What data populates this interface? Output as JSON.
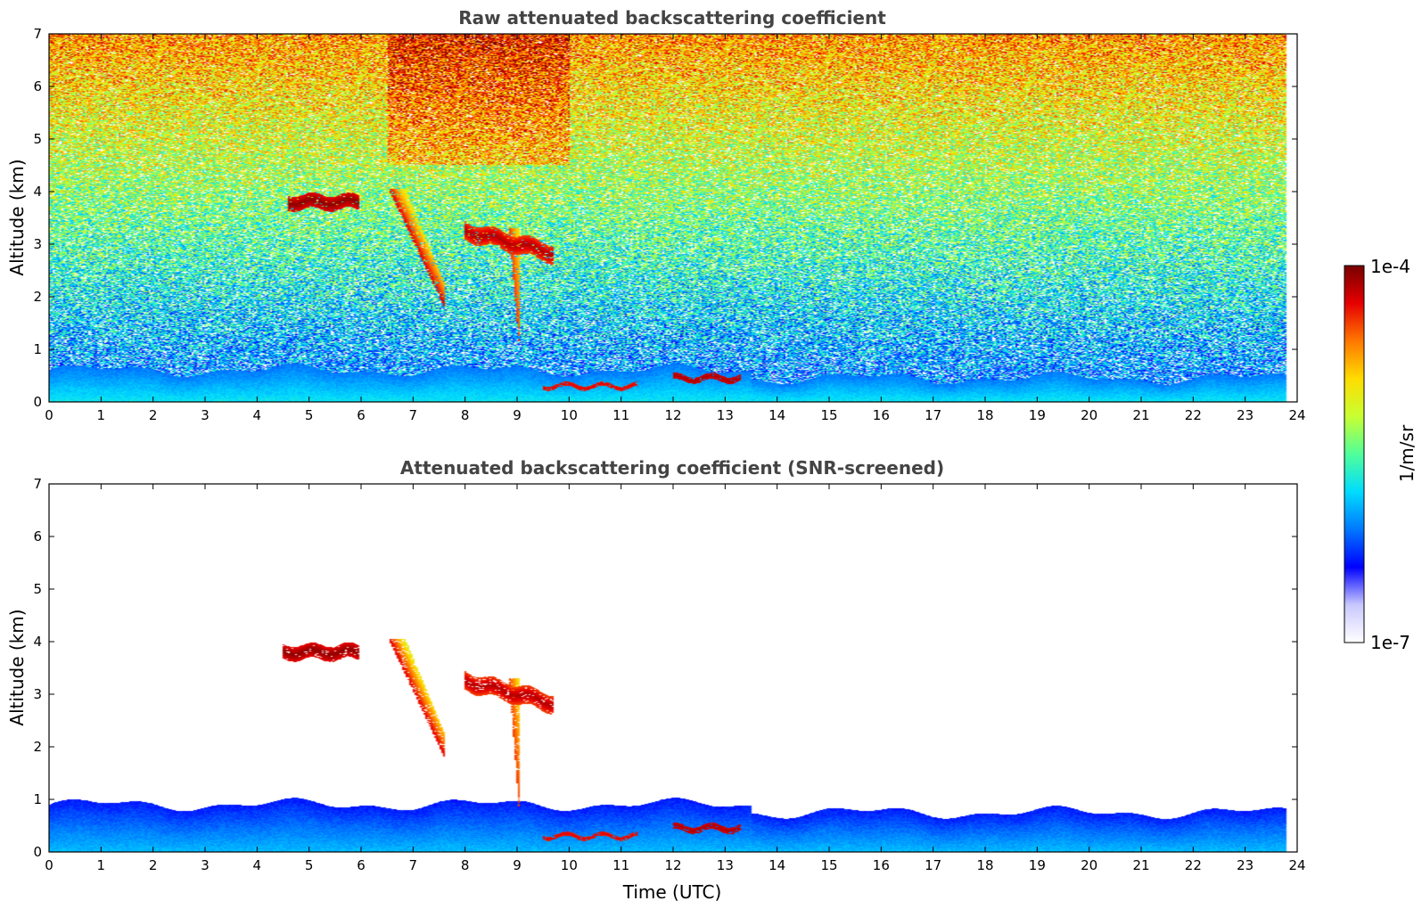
{
  "colormap": [
    "#ffffff",
    "#c8c8ff",
    "#0000ff",
    "#0078ff",
    "#00dcff",
    "#50ff9a",
    "#c8ff32",
    "#ffdc00",
    "#ff7800",
    "#e60000",
    "#780000"
  ],
  "colorbar": {
    "top_label": "1e-4",
    "bottom_label": "1e-7",
    "unit_label": "1/m/sr"
  },
  "chart_data": [
    {
      "type": "heatmap",
      "title": "Raw attenuated backscattering coefficient",
      "xlabel": "",
      "ylabel": "Altitude (km)",
      "xlim": [
        0,
        24
      ],
      "ylim": [
        0,
        7
      ],
      "x_ticks": [
        "0",
        "1",
        "2",
        "3",
        "4",
        "5",
        "6",
        "7",
        "8",
        "9",
        "10",
        "11",
        "12",
        "13",
        "14",
        "15",
        "16",
        "17",
        "18",
        "19",
        "20",
        "21",
        "22",
        "23",
        "24"
      ],
      "y_ticks": [
        "0",
        "1",
        "2",
        "3",
        "4",
        "5",
        "6",
        "7"
      ],
      "data_time_range": [
        0,
        23.8
      ],
      "color_scale": "log",
      "color_range": [
        1e-07,
        0.0001
      ],
      "grid": false,
      "noise_screened": false,
      "features": [
        {
          "kind": "boundary_layer",
          "t_start": 0,
          "t_end": 23.8,
          "top_km": 0.6,
          "level": 0.35
        },
        {
          "kind": "cloud_layer",
          "t_start": 4.6,
          "t_end": 5.95,
          "alt_km": 3.8,
          "thickness_km": 0.28,
          "level": 0.98
        },
        {
          "kind": "fall_streak",
          "t_start": 6.55,
          "t_end": 7.6,
          "alt_top_km": 4.05,
          "alt_bottom_km": 1.85,
          "level": 0.9
        },
        {
          "kind": "cloud_layer",
          "t_start": 8.0,
          "t_end": 9.7,
          "alt_km": 3.25,
          "thickness_km": 0.35,
          "level": 0.95
        },
        {
          "kind": "fall_streak",
          "t_start": 8.85,
          "t_end": 9.05,
          "alt_top_km": 3.3,
          "alt_bottom_km": 1.0,
          "level": 0.85
        },
        {
          "kind": "low_cloud",
          "t_start": 9.5,
          "t_end": 11.3,
          "alt_km": 0.3,
          "thickness_km": 0.08,
          "level": 0.9
        },
        {
          "kind": "low_cloud",
          "t_start": 12.0,
          "t_end": 13.3,
          "alt_km": 0.45,
          "thickness_km": 0.12,
          "level": 0.95
        }
      ]
    },
    {
      "type": "heatmap",
      "title": "Attenuated backscattering coefficient (SNR-screened)",
      "xlabel": "Time (UTC)",
      "ylabel": "Altitude (km)",
      "xlim": [
        0,
        24
      ],
      "ylim": [
        0,
        7
      ],
      "x_ticks": [
        "0",
        "1",
        "2",
        "3",
        "4",
        "5",
        "6",
        "7",
        "8",
        "9",
        "10",
        "11",
        "12",
        "13",
        "14",
        "15",
        "16",
        "17",
        "18",
        "19",
        "20",
        "21",
        "22",
        "23",
        "24"
      ],
      "y_ticks": [
        "0",
        "1",
        "2",
        "3",
        "4",
        "5",
        "6",
        "7"
      ],
      "data_time_range": [
        0,
        23.8
      ],
      "color_scale": "log",
      "color_range": [
        1e-07,
        0.0001
      ],
      "grid": false,
      "noise_screened": true,
      "features": [
        {
          "kind": "boundary_layer",
          "t_start": 0,
          "t_end": 23.8,
          "top_km": 0.9,
          "level": 0.3
        },
        {
          "kind": "cloud_layer",
          "t_start": 4.5,
          "t_end": 5.95,
          "alt_km": 3.8,
          "thickness_km": 0.28,
          "level": 0.98
        },
        {
          "kind": "fall_streak",
          "t_start": 6.55,
          "t_end": 7.6,
          "alt_top_km": 4.05,
          "alt_bottom_km": 1.85,
          "level": 0.9
        },
        {
          "kind": "cloud_layer",
          "t_start": 8.0,
          "t_end": 9.7,
          "alt_km": 3.25,
          "thickness_km": 0.35,
          "level": 0.95
        },
        {
          "kind": "fall_streak",
          "t_start": 8.85,
          "t_end": 9.05,
          "alt_top_km": 3.3,
          "alt_bottom_km": 0.7,
          "level": 0.85
        },
        {
          "kind": "low_cloud",
          "t_start": 9.5,
          "t_end": 11.3,
          "alt_km": 0.3,
          "thickness_km": 0.08,
          "level": 0.9
        },
        {
          "kind": "low_cloud",
          "t_start": 12.0,
          "t_end": 13.3,
          "alt_km": 0.45,
          "thickness_km": 0.12,
          "level": 0.95
        }
      ]
    }
  ]
}
